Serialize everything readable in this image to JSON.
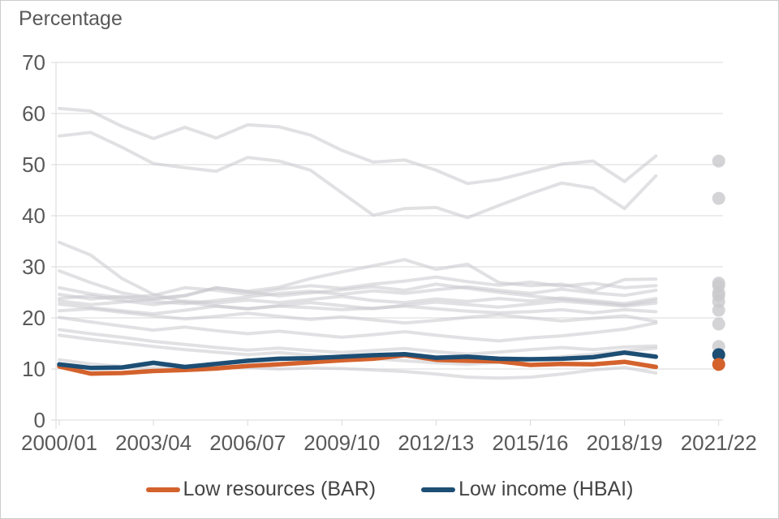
{
  "chart_data": {
    "type": "line",
    "title": "Percentage",
    "x_tick_labels": [
      "2000/01",
      "2003/04",
      "2006/07",
      "2009/10",
      "2012/13",
      "2015/16",
      "2018/19",
      "2021/22"
    ],
    "x_label_year_indexes": [
      0,
      3,
      6,
      9,
      12,
      15,
      18,
      21
    ],
    "x_total_year_slots": 22,
    "line_years_span": "2000/01 to 2019/20",
    "gap_note_years": "2020/21 not plotted; 2021/22 shown as points",
    "y_ticks": [
      0,
      10,
      20,
      30,
      40,
      50,
      60,
      70
    ],
    "ylim": [
      0,
      70
    ],
    "grid": "horizontal",
    "legend_position": "bottom-center",
    "legend": [
      {
        "label": "Low resources (BAR)",
        "color": "#d4622d"
      },
      {
        "label": "Low income (HBAI)",
        "color": "#1d4e74"
      }
    ],
    "series": [
      {
        "name": "context-upper-a",
        "color": "#c9c9cd",
        "values": [
          61.0,
          60.5,
          57.5,
          55.1,
          57.3,
          55.2,
          57.8,
          57.4,
          55.8,
          52.8,
          50.5,
          50.9,
          48.9,
          46.3,
          47.1,
          48.6,
          50.1,
          50.7,
          46.7,
          51.7
        ]
      },
      {
        "name": "context-upper-b",
        "color": "#c9c9cd",
        "values": [
          55.6,
          56.3,
          53.4,
          50.2,
          49.4,
          48.7,
          51.4,
          50.7,
          48.9,
          44.5,
          40.1,
          41.4,
          41.6,
          39.6,
          42.0,
          44.3,
          46.4,
          45.4,
          41.4,
          47.8
        ]
      },
      {
        "name": "context-m1",
        "color": "#c9c9cd",
        "values": [
          34.8,
          32.3,
          27.7,
          24.6,
          23.1,
          22.3,
          21.8,
          22.3,
          22.0,
          21.6,
          21.9,
          22.3,
          21.8,
          21.3,
          21.0,
          21.2,
          21.6,
          21.0,
          21.6,
          21.2
        ]
      },
      {
        "name": "context-m2",
        "color": "#c9c9cd",
        "values": [
          29.2,
          26.9,
          24.9,
          23.8,
          24.4,
          25.9,
          25.2,
          26.0,
          27.7,
          29.0,
          30.2,
          31.4,
          29.5,
          30.5,
          26.9,
          26.3,
          26.6,
          25.3,
          27.5,
          27.6
        ]
      },
      {
        "name": "context-m3",
        "color": "#c9c9cd",
        "values": [
          25.9,
          24.7,
          23.9,
          24.4,
          25.9,
          25.4,
          24.6,
          25.6,
          26.3,
          25.8,
          26.6,
          27.2,
          28.0,
          27.1,
          26.4,
          27.0,
          26.2,
          26.8,
          25.9,
          26.3
        ]
      },
      {
        "name": "context-m4",
        "color": "#c9c9cd",
        "values": [
          24.6,
          23.7,
          24.2,
          23.2,
          22.8,
          23.4,
          24.1,
          24.8,
          25.2,
          24.6,
          25.3,
          24.8,
          25.5,
          26.1,
          25.4,
          24.8,
          25.6,
          24.9,
          24.4,
          25.4
        ]
      },
      {
        "name": "context-m5",
        "color": "#c9c9cd",
        "values": [
          23.8,
          24.3,
          23.4,
          22.6,
          23.3,
          22.9,
          23.5,
          23.0,
          23.6,
          24.2,
          23.4,
          23.0,
          23.7,
          23.2,
          23.8,
          23.3,
          23.9,
          23.4,
          22.8,
          23.8
        ]
      },
      {
        "name": "context-m6",
        "color": "#c9c9cd",
        "values": [
          22.7,
          22.0,
          21.4,
          20.8,
          21.5,
          22.3,
          21.8,
          22.4,
          23.0,
          22.4,
          21.8,
          22.5,
          23.1,
          22.6,
          22.1,
          22.7,
          23.3,
          22.8,
          22.3,
          22.9
        ]
      },
      {
        "name": "context-m7",
        "color": "#c9c9cd",
        "values": [
          21.4,
          21.8,
          21.1,
          20.4,
          19.8,
          20.3,
          20.9,
          20.3,
          19.7,
          20.2,
          19.6,
          19.0,
          19.5,
          20.1,
          20.6,
          20.0,
          19.4,
          19.9,
          20.4,
          19.3
        ]
      },
      {
        "name": "context-m8",
        "color": "#c9c9cd",
        "values": [
          20.1,
          19.2,
          18.4,
          17.6,
          18.2,
          17.5,
          16.9,
          17.4,
          16.8,
          16.2,
          16.7,
          17.3,
          16.6,
          16.0,
          15.5,
          16.1,
          16.5,
          17.1,
          17.8,
          19.0
        ]
      },
      {
        "name": "context-m9",
        "color": "#c9c9cd",
        "values": [
          17.7,
          16.9,
          16.2,
          15.4,
          14.8,
          14.2,
          13.7,
          14.1,
          13.6,
          13.2,
          13.6,
          14.0,
          13.4,
          12.9,
          13.3,
          13.8,
          14.2,
          13.8,
          14.3,
          14.5
        ]
      },
      {
        "name": "context-m10",
        "color": "#c9c9cd",
        "values": [
          16.6,
          15.8,
          15.1,
          14.4,
          13.8,
          13.3,
          12.8,
          13.2,
          12.7,
          12.3,
          12.0,
          11.6,
          11.2,
          10.9,
          11.3,
          11.8,
          12.4,
          12.9,
          13.5,
          14.1
        ]
      },
      {
        "name": "context-m11",
        "color": "#c9c9cd",
        "values": [
          11.8,
          11.0,
          10.5,
          10.2,
          10.4,
          10.7,
          10.3,
          10.0,
          10.2,
          10.1,
          9.8,
          9.5,
          9.0,
          8.4,
          8.2,
          8.4,
          9.0,
          9.8,
          10.3,
          9.2
        ]
      },
      {
        "name": "context-m12",
        "color": "#c9c9cd",
        "values": [
          23.3,
          22.6,
          23.1,
          23.7,
          24.3,
          25.9,
          25.1,
          24.3,
          24.9,
          25.5,
          26.1,
          25.4,
          26.6,
          25.8,
          25.0,
          24.3,
          23.7,
          23.1,
          22.5,
          23.4
        ]
      },
      {
        "name": "low-resources-bar",
        "color": "#d4622d",
        "values": [
          10.5,
          9.1,
          9.2,
          9.6,
          9.8,
          10.1,
          10.6,
          10.9,
          11.3,
          11.7,
          12.0,
          12.7,
          11.8,
          11.6,
          11.5,
          10.8,
          11.0,
          10.9,
          11.4,
          10.4
        ]
      },
      {
        "name": "low-income-hbai",
        "color": "#1d4e74",
        "values": [
          10.9,
          10.2,
          10.3,
          11.2,
          10.4,
          11.0,
          11.6,
          12.0,
          12.1,
          12.4,
          12.7,
          12.9,
          12.2,
          12.4,
          12.0,
          11.9,
          12.0,
          12.3,
          13.2,
          12.4
        ]
      }
    ],
    "points_2021_22": [
      {
        "series": "context",
        "value": 50.7,
        "color": "#c9c9cd"
      },
      {
        "series": "context",
        "value": 43.4,
        "color": "#c9c9cd"
      },
      {
        "series": "context",
        "value": 26.8,
        "color": "#c9c9cd"
      },
      {
        "series": "context",
        "value": 26.3,
        "color": "#c9c9cd"
      },
      {
        "series": "context",
        "value": 24.9,
        "color": "#c9c9cd"
      },
      {
        "series": "context",
        "value": 24.4,
        "color": "#c9c9cd"
      },
      {
        "series": "context",
        "value": 23.2,
        "color": "#c9c9cd"
      },
      {
        "series": "context",
        "value": 21.5,
        "color": "#c9c9cd"
      },
      {
        "series": "context",
        "value": 18.8,
        "color": "#c9c9cd"
      },
      {
        "series": "context",
        "value": 14.4,
        "color": "#c9c9cd"
      },
      {
        "series": "low-income-hbai",
        "value": 12.8,
        "color": "#1d4e74"
      },
      {
        "series": "low-resources-bar",
        "value": 10.9,
        "color": "#d4622d"
      }
    ]
  },
  "colors": {
    "grid": "#d9d9d9",
    "axis": "#d9d9d9",
    "tick_text": "#595959",
    "context_line": "#c9c9cd",
    "bar_orange": "#d4622d",
    "hbai_blue": "#1d4e74",
    "frame_border": "#cccccc"
  }
}
